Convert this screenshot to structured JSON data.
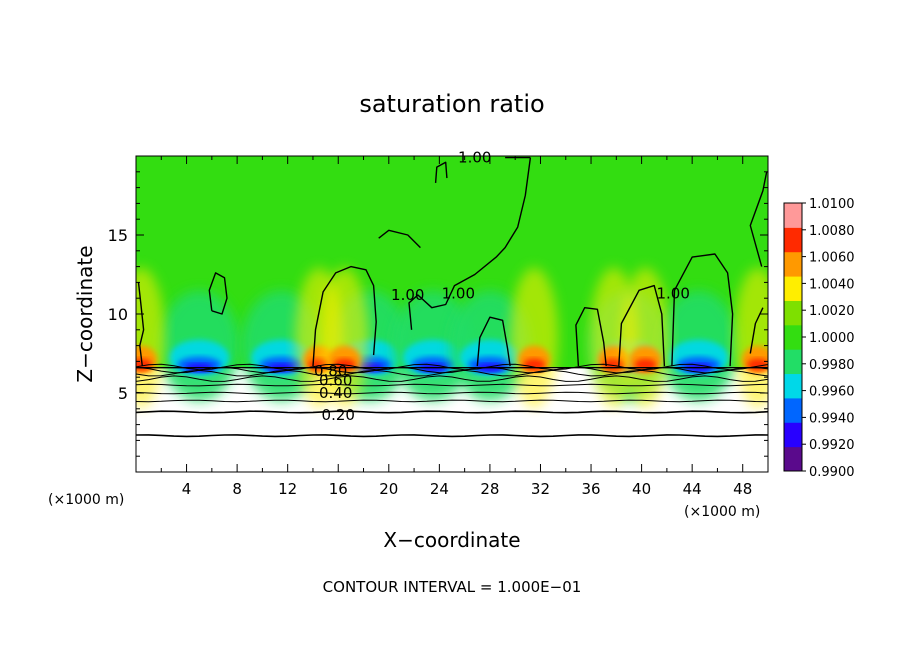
{
  "chart_data": {
    "type": "heatmap",
    "title": "saturation ratio",
    "xlabel": "X−coordinate",
    "ylabel": "Z−coordinate",
    "x_unit_left": "(×1000 m)",
    "x_unit_right": "(×1000 m)",
    "xlim": [
      0,
      50
    ],
    "ylim": [
      0,
      20
    ],
    "x_ticks": [
      4,
      8,
      12,
      16,
      20,
      24,
      28,
      32,
      36,
      40,
      44,
      48
    ],
    "x_tick_labels": [
      "4",
      "8",
      "12",
      "16",
      "20",
      "24",
      "28",
      "32",
      "36",
      "40",
      "44",
      "48"
    ],
    "y_ticks": [
      5,
      10,
      15
    ],
    "y_tick_labels": [
      "5",
      "10",
      "15"
    ],
    "footer": "CONTOUR INTERVAL = 1.000E−01",
    "contour_interval": 0.1,
    "colorbar": {
      "min": 0.99,
      "max": 1.01,
      "labels": [
        "1.0100",
        "1.0080",
        "1.0060",
        "1.0040",
        "1.0020",
        "1.0000",
        "0.9980",
        "0.9960",
        "0.9940",
        "0.9920",
        "0.9900"
      ],
      "colors": [
        "#5a0a8c",
        "#2800ff",
        "#0066ff",
        "#00d8e8",
        "#22dd66",
        "#33dd11",
        "#7ee000",
        "#ffee00",
        "#ff9900",
        "#ff2a00",
        "#ff9999"
      ]
    },
    "cloud_base_z": 6.6,
    "contour_labels": [
      {
        "text": "1.00",
        "x": 26.8,
        "z": 19.9
      },
      {
        "text": "1.00",
        "x": 21.5,
        "z": 11.2
      },
      {
        "text": "1.00",
        "x": 25.5,
        "z": 11.3
      },
      {
        "text": "1.00",
        "x": 42.5,
        "z": 11.3
      },
      {
        "text": "0.80",
        "x": 15.4,
        "z": 6.4
      },
      {
        "text": "0.60",
        "x": 15.8,
        "z": 5.8
      },
      {
        "text": "0.40",
        "x": 15.8,
        "z": 5.0
      },
      {
        "text": "0.20",
        "x": 16.0,
        "z": 3.6
      }
    ],
    "subsaturated_contours_z": [
      6.65,
      6.45,
      6.25,
      5.9,
      5.5,
      5.0,
      4.5,
      3.8,
      2.3
    ],
    "supersaturated_edges_x": [
      0.4,
      14.5,
      16.5,
      31.5,
      37.8,
      40.3,
      49.2
    ],
    "subsaturated_cores_x": [
      5.0,
      11.5,
      18.5,
      23.5,
      28.0,
      39.0,
      44.5
    ]
  }
}
